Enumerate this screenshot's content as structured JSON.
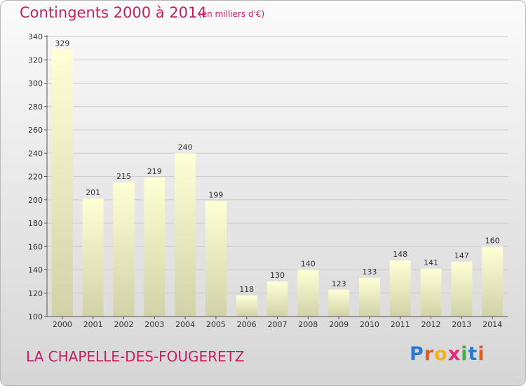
{
  "header": {
    "title": "Contingents 2000 à 2014",
    "subtitle": "(en milliers d'€)"
  },
  "footer": {
    "commune": "LA CHAPELLE-DES-FOUGERETZ",
    "logo": [
      "P",
      "r",
      "o",
      "x",
      "i",
      "t",
      "i"
    ],
    "logo_colors": [
      "#2e7ad1",
      "#e55a1c",
      "#f2b21e",
      "#e5287a",
      "#42b23c",
      "#2e7ad1",
      "#e55a1c"
    ]
  },
  "chart_data": {
    "type": "bar",
    "title": "Contingents 2000 à 2014",
    "subtitle": "(en milliers d'€)",
    "categories": [
      "2000",
      "2001",
      "2002",
      "2003",
      "2004",
      "2005",
      "2006",
      "2007",
      "2008",
      "2009",
      "2010",
      "2011",
      "2012",
      "2013",
      "2014"
    ],
    "values": [
      329,
      201,
      215,
      219,
      240,
      199,
      118,
      130,
      140,
      123,
      133,
      148,
      141,
      147,
      160
    ],
    "ylim": [
      100,
      340
    ],
    "yticks": [
      100,
      120,
      140,
      160,
      180,
      200,
      220,
      240,
      260,
      280,
      300,
      320,
      340
    ],
    "grid": true,
    "colors": {
      "bar_top": "#ffffd6",
      "bar_bottom": "#d2d2a8",
      "grid": "#cccccc",
      "axis": "#555555",
      "accent": "#c71d63"
    }
  }
}
